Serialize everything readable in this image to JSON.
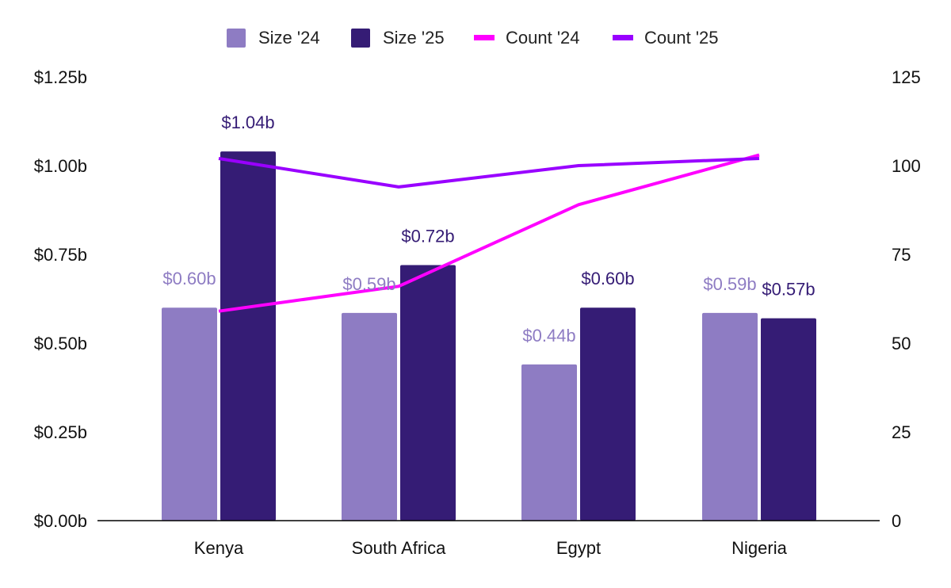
{
  "chart_data": {
    "type": "bar",
    "categories": [
      "Kenya",
      "South Africa",
      "Egypt",
      "Nigeria"
    ],
    "series": [
      {
        "name": "Size '24",
        "kind": "bar",
        "axis": "left",
        "color": "#8e7cc3",
        "label_color": "#8e7cc3",
        "values": [
          0.6,
          0.585,
          0.44,
          0.585
        ],
        "labels": [
          "$0.60b",
          "$0.59b",
          "$0.44b",
          "$0.59b"
        ]
      },
      {
        "name": "Size '25",
        "kind": "bar",
        "axis": "left",
        "color": "#351c75",
        "label_color": "#351c75",
        "values": [
          1.04,
          0.72,
          0.6,
          0.57
        ],
        "labels": [
          "$1.04b",
          "$0.72b",
          "$0.60b",
          "$0.57b"
        ]
      },
      {
        "name": "Count '24",
        "kind": "line",
        "axis": "right",
        "color": "#ff00ff",
        "values": [
          59,
          66,
          89,
          103
        ]
      },
      {
        "name": "Count '25",
        "kind": "line",
        "axis": "right",
        "color": "#9900ff",
        "values": [
          102,
          94,
          100,
          102
        ]
      }
    ],
    "y_left": {
      "range": [
        0,
        1.25
      ],
      "ticks": [
        0,
        0.25,
        0.5,
        0.75,
        1.0,
        1.25
      ],
      "tick_labels": [
        "$0.00b",
        "$0.25b",
        "$0.50b",
        "$0.75b",
        "$1.00b",
        "$1.25b"
      ]
    },
    "y_right": {
      "range": [
        0,
        125
      ],
      "ticks": [
        0,
        25,
        50,
        75,
        100,
        125
      ],
      "tick_labels": [
        "0",
        "25",
        "50",
        "75",
        "100",
        "125"
      ]
    },
    "legend_position": "top-center",
    "grid": false,
    "title": "",
    "xlabel": "",
    "ylabel": ""
  }
}
